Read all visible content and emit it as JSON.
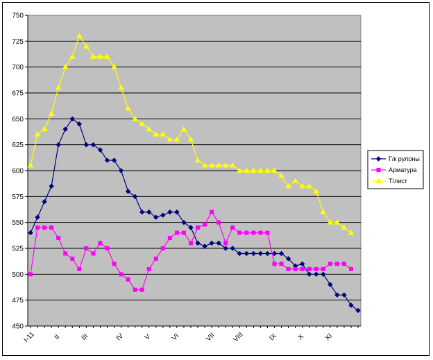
{
  "chart_data": {
    "type": "line",
    "ylim": [
      450,
      750
    ],
    "y_ticks": [
      450,
      475,
      500,
      525,
      550,
      575,
      600,
      625,
      650,
      675,
      700,
      725,
      750
    ],
    "x_ticks": [
      {
        "label": "I-11",
        "index": 0
      },
      {
        "label": "II",
        "index": 4
      },
      {
        "label": "III",
        "index": 8
      },
      {
        "label": "IV",
        "index": 13
      },
      {
        "label": "V",
        "index": 17
      },
      {
        "label": "VI",
        "index": 21
      },
      {
        "label": "VII",
        "index": 26
      },
      {
        "label": "VIII",
        "index": 30
      },
      {
        "label": "IX",
        "index": 35
      },
      {
        "label": "X",
        "index": 39
      },
      {
        "label": "XI",
        "index": 43
      }
    ],
    "grid": true,
    "legend_position": "right",
    "plot_background": "#c0c0c0",
    "series": [
      {
        "name": "Г/к рулоны",
        "color": "#000080",
        "marker": "diamond",
        "values": [
          540,
          555,
          570,
          585,
          625,
          640,
          650,
          645,
          625,
          625,
          620,
          610,
          610,
          600,
          580,
          575,
          560,
          560,
          555,
          557,
          560,
          560,
          550,
          545,
          530,
          527,
          530,
          530,
          525,
          525,
          520,
          520,
          520,
          520,
          520,
          520,
          520,
          515,
          508,
          510,
          500,
          500,
          500,
          490,
          480,
          480,
          470,
          465
        ]
      },
      {
        "name": "Арматура",
        "color": "#ff00ff",
        "marker": "square",
        "values": [
          500,
          545,
          545,
          545,
          535,
          520,
          515,
          505,
          525,
          520,
          530,
          525,
          510,
          500,
          495,
          485,
          485,
          505,
          515,
          525,
          535,
          540,
          540,
          530,
          545,
          548,
          560,
          550,
          530,
          545,
          540,
          540,
          540,
          540,
          540,
          510,
          510,
          505,
          505,
          505,
          505,
          505,
          505,
          510,
          510,
          510,
          505
        ]
      },
      {
        "name": "Т/лист",
        "color": "#ffff00",
        "marker": "triangle",
        "values": [
          605,
          635,
          640,
          655,
          680,
          700,
          710,
          730,
          720,
          710,
          710,
          710,
          700,
          680,
          660,
          650,
          645,
          640,
          635,
          635,
          630,
          630,
          640,
          630,
          610,
          605,
          605,
          605,
          605,
          605,
          600,
          600,
          600,
          600,
          600,
          600,
          595,
          585,
          590,
          585,
          585,
          580,
          560,
          550,
          550,
          545,
          540
        ]
      }
    ]
  }
}
